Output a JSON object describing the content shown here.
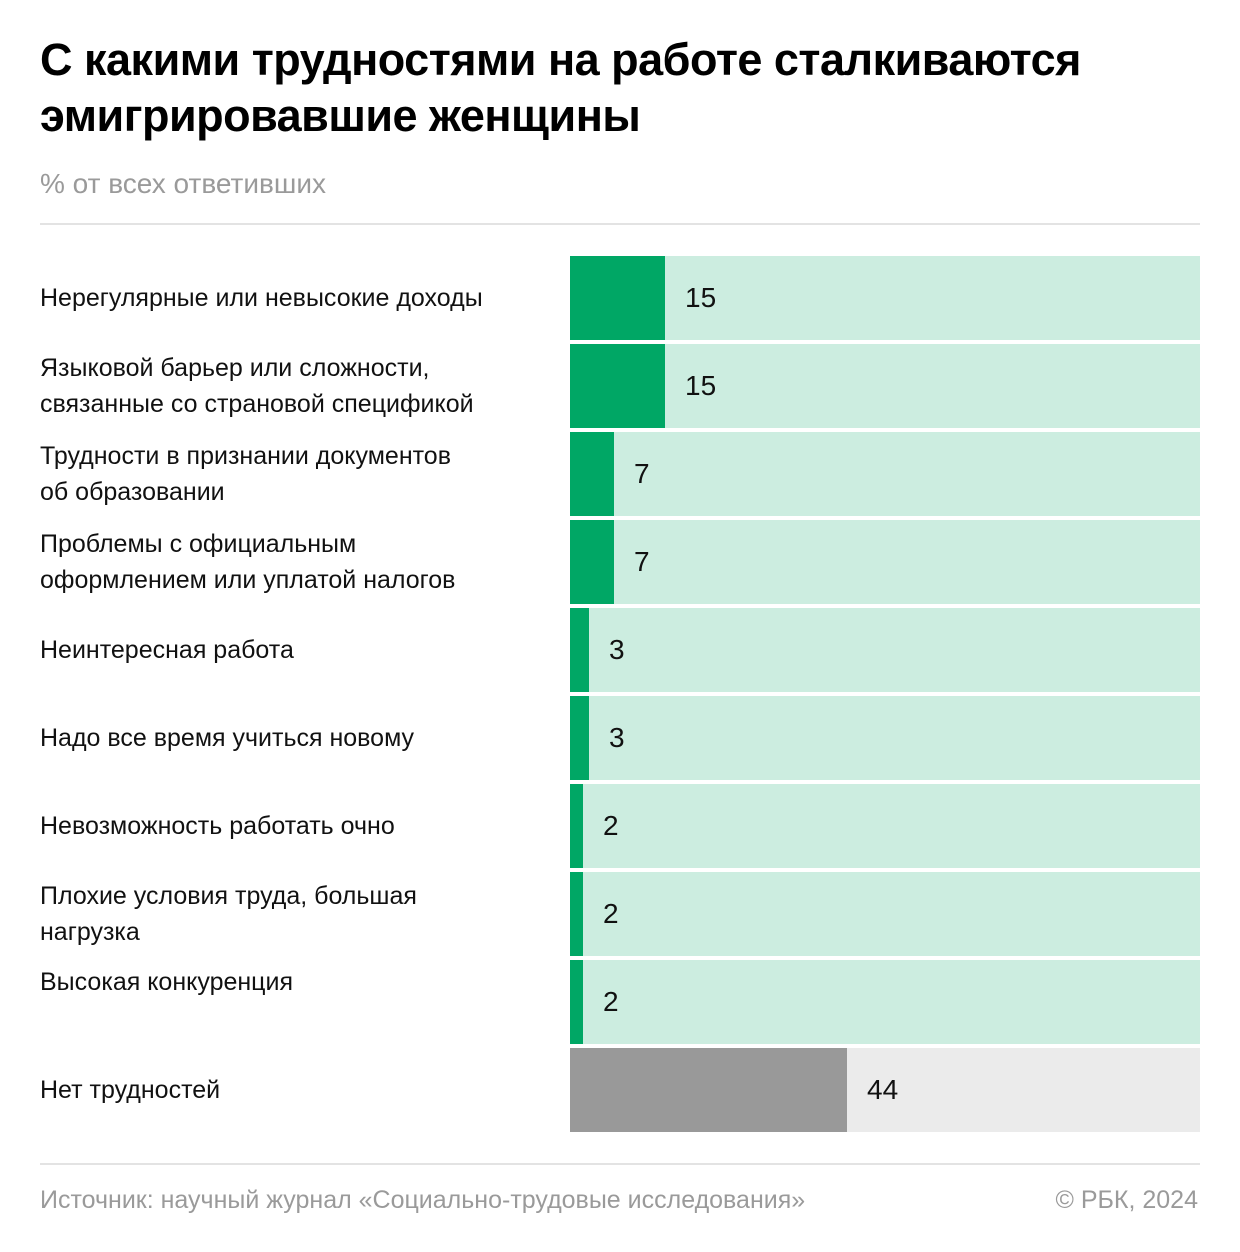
{
  "header": {
    "title": "С какими трудностями на работе сталкиваются эмигрировавшие женщины",
    "subtitle": "% от всех ответивших"
  },
  "footer": {
    "source": "Источник: научный журнал «Социально-трудовые исследования»",
    "copyright": "© РБК, 2024"
  },
  "colors": {
    "accent": "#00A765",
    "accent_track": "#CCEDE0",
    "neutral": "#999999",
    "neutral_track": "#EBEBEB"
  },
  "chart_data": {
    "type": "bar",
    "orientation": "horizontal",
    "title": "С какими трудностями на работе сталкиваются эмигрировавшие женщины",
    "subtitle": "% от всех ответивших",
    "xlabel": "",
    "ylabel": "",
    "xlim": [
      0,
      100
    ],
    "grid": false,
    "categories": [
      "Нерегулярные или невысокие доходы",
      "Языковой барьер или сложности, связанные со страновой спецификой",
      "Трудности в признании документов об образовании",
      "Проблемы с официальным оформлением или уплатой налогов",
      "Неинтересная работа",
      "Надо все время учиться новому",
      "Невозможность работать очно",
      "Плохие условия труда, большая нагрузка",
      "Высокая конкуренция",
      "Нет трудностей"
    ],
    "label_lines": [
      [
        "Нерегулярные или невысокие доходы"
      ],
      [
        "Языковой барьер или сложности,",
        "связанные со страновой спецификой"
      ],
      [
        "Трудности в признании документов",
        "об образовании"
      ],
      [
        "Проблемы с официальным",
        "оформлением или уплатой налогов"
      ],
      [
        "Неинтересная работа"
      ],
      [
        "Надо все время учиться новому"
      ],
      [
        "Невозможность работать очно"
      ],
      [
        "Плохие условия труда, большая",
        "нагрузка"
      ],
      [
        "Высокая конкуренция"
      ],
      [
        "Нет трудностей"
      ]
    ],
    "values": [
      15,
      15,
      7,
      7,
      3,
      3,
      2,
      2,
      2,
      44
    ],
    "groups": [
      "difficulty",
      "difficulty",
      "difficulty",
      "difficulty",
      "difficulty",
      "difficulty",
      "difficulty",
      "difficulty",
      "difficulty",
      "none"
    ]
  }
}
